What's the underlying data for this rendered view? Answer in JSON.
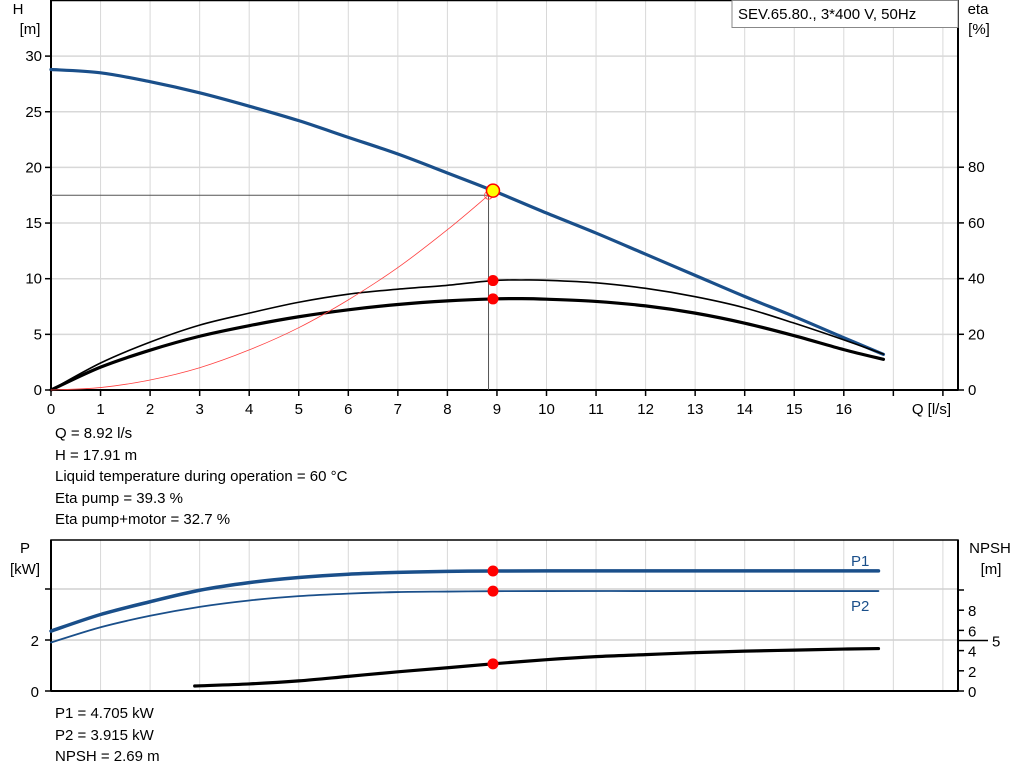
{
  "chart_data": [
    {
      "type": "line",
      "title": "SEV.65.80., 3*400 V, 50Hz",
      "xlabel": "Q [l/s]",
      "ylabel": "H\n[m]",
      "ylabel_left_lines": [
        "H",
        "[m]"
      ],
      "ylabel_right_lines": [
        "eta",
        "[%]"
      ],
      "xlim": [
        0,
        18.2
      ],
      "ylim_left": [
        0,
        35
      ],
      "ylim_right": [
        0,
        140
      ],
      "x_ticks": [
        "0",
        "1",
        "2",
        "3",
        "4",
        "5",
        "6",
        "7",
        "8",
        "9",
        "10",
        "11",
        "12",
        "13",
        "14",
        "15",
        "16"
      ],
      "x_ticks_unlabeled": [
        17,
        18
      ],
      "y_ticks_left": [
        "0",
        "5",
        "10",
        "15",
        "20",
        "25",
        "30"
      ],
      "y_ticks_right": [
        "0",
        "20",
        "40",
        "60",
        "80"
      ],
      "grid": true,
      "colors": {
        "head": "#1a4f8a",
        "eta": "#000000",
        "system": "#ff4040",
        "marker": "#ff0000",
        "duty": "#ffff00"
      },
      "series": [
        {
          "key": "head",
          "axis": "left",
          "x": [
            0,
            1,
            2,
            3,
            4,
            5,
            6,
            7,
            8,
            8.92,
            10,
            11,
            12,
            13,
            14,
            15,
            16,
            16.8
          ],
          "y": [
            28.8,
            28.5,
            27.7,
            26.7,
            25.5,
            24.2,
            22.7,
            21.2,
            19.5,
            17.91,
            15.9,
            14.1,
            12.2,
            10.3,
            8.4,
            6.6,
            4.7,
            3.2
          ]
        },
        {
          "key": "eta_pump",
          "axis": "right",
          "x": [
            0,
            1,
            2,
            3,
            4,
            5,
            6,
            7,
            8,
            8.92,
            9.5,
            10,
            11,
            12,
            13,
            14,
            15,
            16,
            16.8
          ],
          "y": [
            0,
            9.7,
            17.2,
            23.3,
            27.6,
            31.5,
            34.4,
            36.2,
            37.6,
            39.3,
            39.5,
            39.4,
            38.5,
            36.5,
            33.5,
            29.5,
            24,
            18,
            12.9
          ]
        },
        {
          "key": "eta_pump_motor",
          "axis": "right",
          "x": [
            0,
            1,
            2,
            3,
            4,
            5,
            6,
            7,
            8,
            8.92,
            9.5,
            10,
            11,
            12,
            13,
            14,
            15,
            16,
            16.8
          ],
          "y": [
            0,
            8.2,
            14.3,
            19.3,
            23.1,
            26.3,
            28.8,
            30.7,
            32,
            32.7,
            32.8,
            32.6,
            31.8,
            30.2,
            27.6,
            24,
            19.5,
            14.5,
            11
          ]
        },
        {
          "key": "system",
          "axis": "left",
          "x": [
            0,
            1,
            2,
            3,
            4,
            5,
            6,
            7,
            8,
            8.83
          ],
          "y": [
            0,
            0.22,
            0.9,
            2.0,
            3.6,
            5.6,
            8.1,
            11.0,
            14.4,
            17.5
          ]
        }
      ],
      "duty_point": {
        "q": 8.92,
        "h": 17.91
      },
      "guide_point": {
        "q": 8.83,
        "h": 17.5
      },
      "markers_right": [
        {
          "q": 8.92,
          "eta": 39.3
        },
        {
          "q": 8.92,
          "eta": 32.7
        }
      ]
    },
    {
      "type": "line",
      "ylabel_left_lines": [
        "P",
        "[kW]"
      ],
      "ylabel_right_lines": [
        "NPSH",
        "[m]"
      ],
      "xlim": [
        0,
        18.2
      ],
      "ylim_left": [
        0,
        5.9
      ],
      "ylim_right": [
        0,
        15
      ],
      "y_ticks_left": [
        "0",
        "2"
      ],
      "y_ticks_left_unlabeled": [
        4
      ],
      "y_ticks_right": [
        "0",
        "2",
        "4",
        "5",
        "6",
        "8"
      ],
      "y_ticks_right_unlabeled": [
        10
      ],
      "grid": true,
      "colors": {
        "power": "#1a4f8a",
        "npsh": "#000000",
        "marker": "#ff0000"
      },
      "series": [
        {
          "key": "P1",
          "name": "P1",
          "axis": "left",
          "x": [
            0,
            1,
            2,
            3,
            4,
            5,
            6,
            7,
            8,
            8.92,
            10,
            12,
            14,
            16,
            16.7
          ],
          "y": [
            2.35,
            3.0,
            3.5,
            3.95,
            4.25,
            4.45,
            4.58,
            4.65,
            4.69,
            4.705,
            4.71,
            4.71,
            4.71,
            4.71,
            4.71
          ]
        },
        {
          "key": "P2",
          "name": "P2",
          "axis": "left",
          "x": [
            0,
            1,
            2,
            3,
            4,
            5,
            6,
            7,
            8,
            8.92,
            10,
            12,
            14,
            16,
            16.7
          ],
          "y": [
            1.9,
            2.5,
            2.95,
            3.3,
            3.55,
            3.72,
            3.82,
            3.88,
            3.9,
            3.915,
            3.92,
            3.92,
            3.92,
            3.92,
            3.92
          ]
        },
        {
          "key": "NPSH",
          "axis": "right",
          "x": [
            2.9,
            4,
            5,
            6,
            7,
            8,
            8.92,
            10,
            11,
            12,
            13,
            14,
            15,
            16,
            16.7
          ],
          "y": [
            0.5,
            0.7,
            1.0,
            1.45,
            1.9,
            2.3,
            2.69,
            3.1,
            3.4,
            3.6,
            3.8,
            3.95,
            4.05,
            4.15,
            4.2
          ]
        }
      ],
      "markers": [
        {
          "q": 8.92,
          "axis": "left",
          "v": 4.705
        },
        {
          "q": 8.92,
          "axis": "left",
          "v": 3.915
        },
        {
          "q": 8.92,
          "axis": "right",
          "v": 2.69
        }
      ]
    }
  ],
  "results_top": [
    "Q = 8.92 l/s",
    "H = 17.91 m",
    "Liquid temperature during operation = 60 °C",
    "Eta pump = 39.3 %",
    "Eta pump+motor = 32.7 %"
  ],
  "results_bottom": [
    "P1 = 4.705 kW",
    "P2 = 3.915 kW",
    "NPSH = 2.69 m"
  ]
}
